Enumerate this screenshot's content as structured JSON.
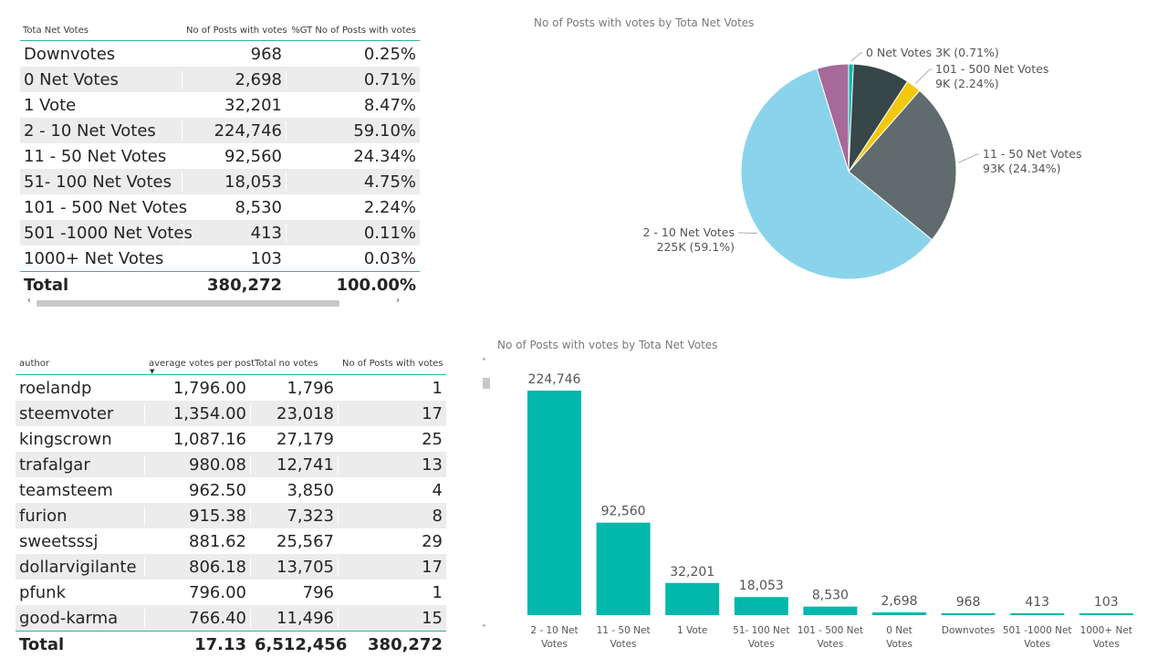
{
  "colors": {
    "accent": "#2bb3a6",
    "bar": "#01b8aa",
    "pie": [
      "#8ad4eb",
      "#5f6b6d",
      "#374649",
      "#f2c80f",
      "#01b8aa",
      "#a66999"
    ]
  },
  "net_votes_table": {
    "headers": [
      "Tota Net Votes",
      "No of Posts with votes",
      "%GT No of Posts with votes"
    ],
    "rows": [
      [
        "Downvotes",
        "968",
        "0.25%"
      ],
      [
        "0 Net Votes",
        "2,698",
        "0.71%"
      ],
      [
        "1 Vote",
        "32,201",
        "8.47%"
      ],
      [
        "2 - 10  Net Votes",
        "224,746",
        "59.10%"
      ],
      [
        "11 - 50 Net Votes",
        "92,560",
        "24.34%"
      ],
      [
        "51- 100 Net Votes",
        "18,053",
        "4.75%"
      ],
      [
        "101 - 500 Net Votes",
        "8,530",
        "2.24%"
      ],
      [
        "501 -1000 Net Votes",
        "413",
        "0.11%"
      ],
      [
        "1000+  Net Votes",
        "103",
        "0.03%"
      ]
    ],
    "total": [
      "Total",
      "380,272",
      "100.00%"
    ],
    "scroll_left_icon": "‹",
    "scroll_right_icon": "›"
  },
  "author_table": {
    "headers": [
      "author",
      "average votes per post",
      "Total no votes",
      "No of Posts with votes"
    ],
    "rows": [
      [
        "roelandp",
        "1,796.00",
        "1,796",
        "1"
      ],
      [
        "steemvoter",
        "1,354.00",
        "23,018",
        "17"
      ],
      [
        "kingscrown",
        "1,087.16",
        "27,179",
        "25"
      ],
      [
        "trafalgar",
        "980.08",
        "12,741",
        "13"
      ],
      [
        "teamsteem",
        "962.50",
        "3,850",
        "4"
      ],
      [
        "furion",
        "915.38",
        "7,323",
        "8"
      ],
      [
        "sweetsssj",
        "881.62",
        "25,567",
        "29"
      ],
      [
        "dollarvigilante",
        "806.18",
        "13,705",
        "17"
      ],
      [
        "pfunk",
        "796.00",
        "796",
        "1"
      ],
      [
        "good-karma",
        "766.40",
        "11,496",
        "15"
      ]
    ],
    "total": [
      "Total",
      "17.13",
      "6,512,456",
      "380,272"
    ],
    "sort_icon": "▼",
    "scroll_up_icon": "˄",
    "scroll_down_icon": "˅"
  },
  "chart_data": [
    {
      "type": "pie",
      "title": "No of Posts with votes by Tota Net Votes",
      "slices": [
        {
          "label": "2 - 10 Net Votes",
          "value": 224746,
          "data_label": "2 - 10 Net Votes\n225K (59.1%)"
        },
        {
          "label": "11 - 50 Net Votes",
          "value": 92560,
          "data_label": "11 - 50 Net Votes\n93K (24.34%)"
        },
        {
          "label": "1 Vote",
          "value": 32201,
          "data_label": ""
        },
        {
          "label": "101 - 500 Net Votes",
          "value": 8530,
          "data_label": "101 - 500 Net Votes\n9K (2.24%)"
        },
        {
          "label": "0 Net Votes",
          "value": 2698,
          "data_label": "0 Net Votes 3K (0.71%)"
        },
        {
          "label": "51- 100 Net Votes",
          "value": 18053,
          "data_label": ""
        }
      ]
    },
    {
      "type": "bar",
      "title": "No of Posts with votes by Tota Net Votes",
      "categories": [
        "2 - 10 Net Votes",
        "11 - 50 Net Votes",
        "1 Vote",
        "51- 100 Net Votes",
        "101 - 500 Net Votes",
        "0 Net Votes",
        "Downvotes",
        "501 -1000 Net Votes",
        "1000+ Net Votes"
      ],
      "values": [
        224746,
        92560,
        32201,
        18053,
        8530,
        2698,
        968,
        413,
        103
      ],
      "data_labels": [
        "224,746",
        "92,560",
        "32,201",
        "18,053",
        "8,530",
        "2,698",
        "968",
        "413",
        "103"
      ],
      "ylim": [
        0,
        224746
      ]
    }
  ]
}
